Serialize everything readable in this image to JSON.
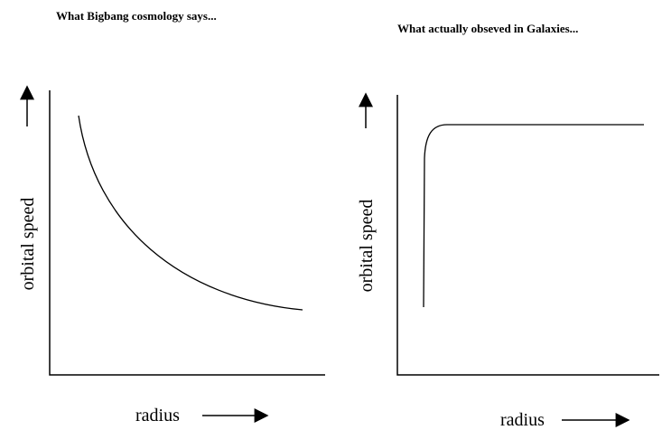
{
  "panels": [
    {
      "title": "What Bigbang cosmology says...",
      "x_label": "radius",
      "y_label": "orbital speed"
    },
    {
      "title": "What actually obseved in Galaxies...",
      "x_label": "radius",
      "y_label": "orbital speed"
    }
  ]
}
